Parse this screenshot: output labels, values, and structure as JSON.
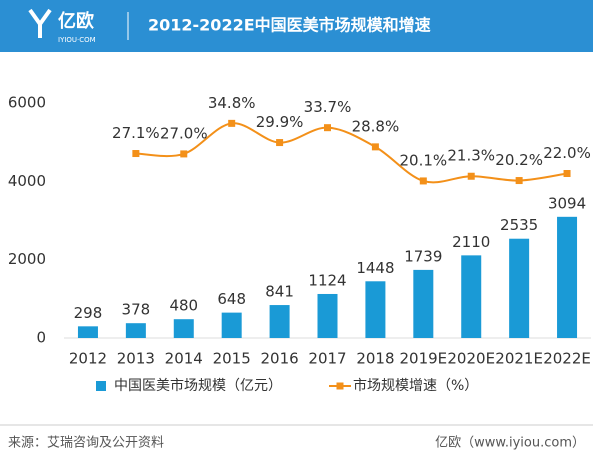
{
  "header": {
    "logo": "亿欧",
    "logo_sub": "IYIOU·COM",
    "title": "2012-2022E中国医美市场规模和增速"
  },
  "chart_data": {
    "type": "bar",
    "categories": [
      "2012",
      "2013",
      "2014",
      "2015",
      "2016",
      "2017",
      "2018",
      "2019E",
      "2020E",
      "2021E",
      "2022E"
    ],
    "series": [
      {
        "name": "中国医美市场规模（亿元）",
        "color": "#1a9ad6",
        "type": "bar",
        "values": [
          298,
          378,
          480,
          648,
          841,
          1124,
          1448,
          1739,
          2110,
          2535,
          3094
        ]
      },
      {
        "name": "市场规模增速（%）",
        "color": "#f39019",
        "type": "line",
        "axis": "y2",
        "values": [
          null,
          27.1,
          27.0,
          34.8,
          29.9,
          33.7,
          28.8,
          20.1,
          21.3,
          20.2,
          22.0
        ],
        "value_labels": [
          null,
          "27.1%",
          "27.0%",
          "34.8%",
          "29.9%",
          "33.7%",
          "28.8%",
          "20.1%",
          "21.3%",
          "20.2%",
          "22.0%"
        ]
      }
    ],
    "ylim": [
      0,
      6000
    ],
    "yticks": [
      0,
      2000,
      4000,
      6000
    ],
    "y2lim": [
      -20,
      40
    ],
    "grid": false,
    "legend": "bottom"
  },
  "footer": {
    "source": "来源：艾瑞咨询及公开资料",
    "brand": "亿欧（www.iyiou.com）"
  }
}
